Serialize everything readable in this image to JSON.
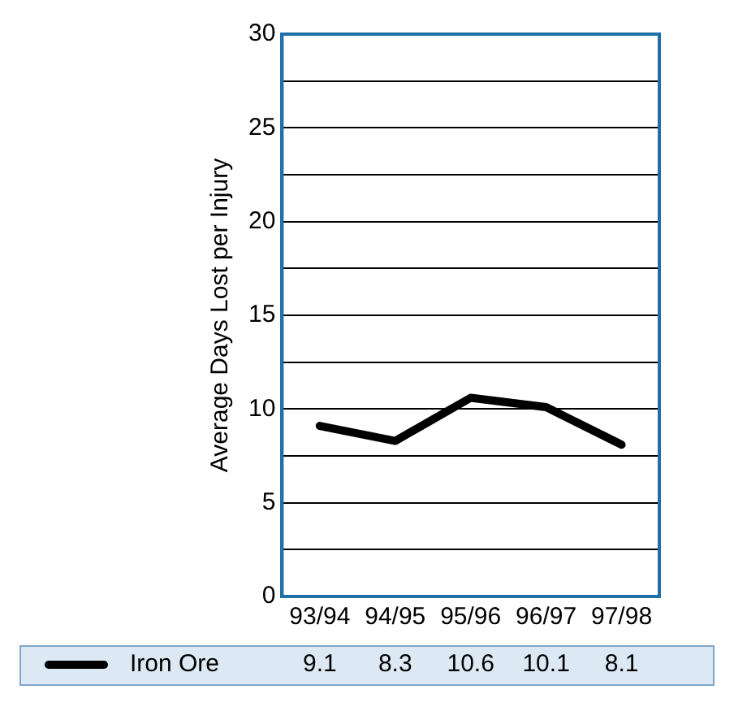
{
  "chart_data": {
    "type": "line",
    "ylabel": "Average Days Lost per Injury",
    "categories": [
      "93/94",
      "94/95",
      "95/96",
      "96/97",
      "97/98"
    ],
    "series": [
      {
        "name": "Iron Ore",
        "color": "#000000",
        "values": [
          9.1,
          8.3,
          10.6,
          10.1,
          8.1
        ]
      }
    ],
    "ylim": [
      0,
      30
    ],
    "yticks": [
      0,
      {
        "value": 2.5,
        "label": null
      },
      5,
      {
        "value": 7.5,
        "label": null
      },
      10,
      {
        "value": 12.5,
        "label": null
      },
      15,
      {
        "value": 17.5,
        "label": null
      },
      20,
      {
        "value": 22.5,
        "label": null
      },
      25,
      {
        "value": 27.5,
        "label": null
      },
      30
    ],
    "grid": "y",
    "legend": "bottom",
    "data_labels": true,
    "marker": "none",
    "line_style": "solid"
  }
}
